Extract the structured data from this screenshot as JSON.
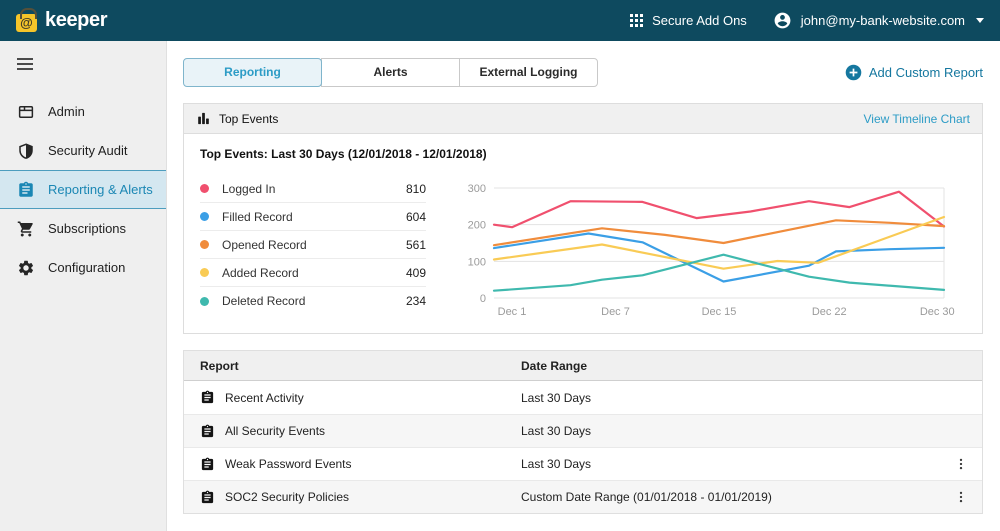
{
  "navbar": {
    "brand": "keeper",
    "brand_glyph": "@",
    "secure_add_ons_label": "Secure Add Ons",
    "user_email": "john@my-bank-website.com"
  },
  "sidebar": {
    "items": [
      {
        "label": "Admin",
        "icon": "window-icon",
        "selected": false
      },
      {
        "label": "Security Audit",
        "icon": "shield-icon",
        "selected": false
      },
      {
        "label": "Reporting & Alerts",
        "icon": "clipboard-icon",
        "selected": true
      },
      {
        "label": "Subscriptions",
        "icon": "cart-icon",
        "selected": false
      },
      {
        "label": "Configuration",
        "icon": "gear-icon",
        "selected": false
      }
    ]
  },
  "tabs": [
    {
      "label": "Reporting",
      "selected": true
    },
    {
      "label": "Alerts",
      "selected": false
    },
    {
      "label": "External Logging",
      "selected": false
    }
  ],
  "actions": {
    "add_custom_report_label": "Add Custom Report"
  },
  "top_events_panel": {
    "header_title": "Top Events",
    "header_link": "View Timeline Chart"
  },
  "chart_data": {
    "type": "line",
    "title": "Top Events: Last 30 Days (12/01/2018 - 12/01/2018)",
    "ylim": [
      0,
      300
    ],
    "yticks": [
      0,
      100,
      200,
      300
    ],
    "grid": true,
    "legend_position": "left",
    "xticks": [
      {
        "label": "Dec 1",
        "t": 0.04
      },
      {
        "label": "Dec 7",
        "t": 0.27
      },
      {
        "label": "Dec 15",
        "t": 0.5
      },
      {
        "label": "Dec 22",
        "t": 0.745
      },
      {
        "label": "Dec 30",
        "t": 0.985
      }
    ],
    "series": [
      {
        "name": "Logged In",
        "total": 810,
        "color": "#F0506E",
        "points": [
          [
            0,
            200
          ],
          [
            0.04,
            193
          ],
          [
            0.17,
            264
          ],
          [
            0.33,
            262
          ],
          [
            0.45,
            218
          ],
          [
            0.57,
            236
          ],
          [
            0.7,
            264
          ],
          [
            0.79,
            248
          ],
          [
            0.9,
            290
          ],
          [
            1,
            195
          ]
        ]
      },
      {
        "name": "Filled Record",
        "total": 604,
        "color": "#3B9FE6",
        "points": [
          [
            0,
            136
          ],
          [
            0.21,
            176
          ],
          [
            0.33,
            152
          ],
          [
            0.51,
            45
          ],
          [
            0.7,
            88
          ],
          [
            0.76,
            127
          ],
          [
            0.88,
            133
          ],
          [
            1,
            137
          ]
        ]
      },
      {
        "name": "Opened Record",
        "total": 561,
        "color": "#F08C3C",
        "points": [
          [
            0,
            144
          ],
          [
            0.24,
            190
          ],
          [
            0.38,
            172
          ],
          [
            0.51,
            150
          ],
          [
            0.76,
            212
          ],
          [
            0.88,
            205
          ],
          [
            1,
            196
          ]
        ]
      },
      {
        "name": "Added Record",
        "total": 409,
        "color": "#F9CB55",
        "points": [
          [
            0,
            105
          ],
          [
            0.24,
            146
          ],
          [
            0.51,
            80
          ],
          [
            0.63,
            101
          ],
          [
            0.72,
            96
          ],
          [
            1,
            221
          ]
        ]
      },
      {
        "name": "Deleted Record",
        "total": 234,
        "color": "#3FB9AE",
        "points": [
          [
            0,
            20
          ],
          [
            0.17,
            35
          ],
          [
            0.24,
            50
          ],
          [
            0.33,
            62
          ],
          [
            0.51,
            118
          ],
          [
            0.7,
            58
          ],
          [
            0.79,
            42
          ],
          [
            1,
            22
          ]
        ]
      }
    ]
  },
  "reports_table": {
    "columns": [
      "Report",
      "Date Range"
    ],
    "rows": [
      {
        "name": "Recent Activity",
        "date_range": "Last 30 Days",
        "menu": false
      },
      {
        "name": "All Security Events",
        "date_range": "Last 30 Days",
        "menu": false
      },
      {
        "name": "Weak Password Events",
        "date_range": "Last 30 Days",
        "menu": true
      },
      {
        "name": "SOC2 Security Policies",
        "date_range": "Custom Date Range (01/01/2018 - 01/01/2019)",
        "menu": true
      }
    ]
  },
  "colors": {
    "navbar_bg": "#0E4A5F",
    "brand_yellow": "#F5C52A",
    "link_blue": "#2D9CC6",
    "button_blue": "#15779F",
    "selected_item_bg": "#D4E7F0",
    "selected_item_border": "#4D9DBE",
    "selected_item_text": "#1B87B4",
    "panel_header_bg": "#F0F0F0",
    "row_alt_bg": "#F6F6F6"
  }
}
